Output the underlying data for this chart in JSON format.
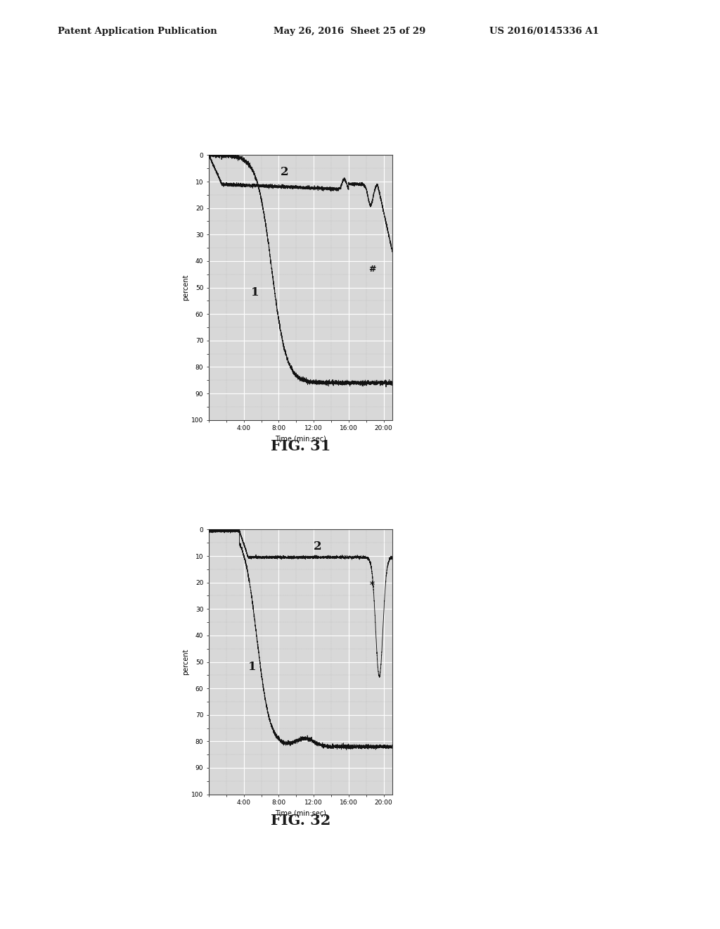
{
  "header_left": "Patent Application Publication",
  "header_mid": "May 26, 2016  Sheet 25 of 29",
  "header_right": "US 2016/0145336 A1",
  "fig31_label": "FIG. 31",
  "fig32_label": "FIG. 32",
  "xlabel": "Time (min:sec)",
  "ylabel": "percent",
  "xtick_labels": [
    "4:00",
    "8:00",
    "12:00",
    "16:00",
    "20:00"
  ],
  "ytick_labels": [
    "0",
    "10",
    "20",
    "30",
    "40",
    "50",
    "60",
    "70",
    "80",
    "90",
    "100"
  ],
  "bg_color": "#ffffff",
  "plot_bg": "#d8d8d8",
  "line_color": "#111111",
  "grid_color": "#ffffff",
  "text_color": "#1a1a1a"
}
